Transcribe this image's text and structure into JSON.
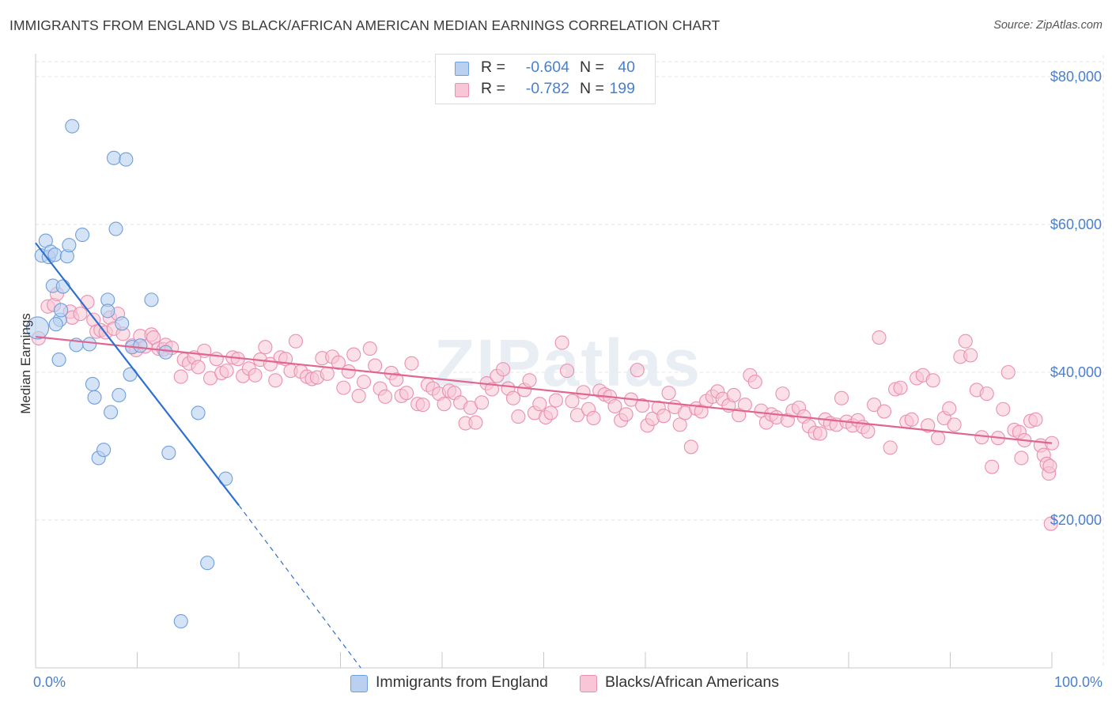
{
  "title": "IMMIGRANTS FROM ENGLAND VS BLACK/AFRICAN AMERICAN MEDIAN EARNINGS CORRELATION CHART",
  "source": "Source: ZipAtlas.com",
  "watermark": "ZIPatlas",
  "colors": {
    "blue_fill": "#b9d0f0",
    "blue_stroke": "#6f9fdc",
    "blue_line": "#2f6fcf",
    "pink_fill": "#f8c6d6",
    "pink_stroke": "#eb8fb0",
    "pink_line": "#e0668f",
    "tick_text": "#4a7fcc",
    "grid": "#e4e4e4"
  },
  "legend": {
    "rows": [
      {
        "r_label": "R =",
        "r_value": "-0.604",
        "n_label": "N =",
        "n_value": "40"
      },
      {
        "r_label": "R =",
        "r_value": "-0.782",
        "n_label": "N =",
        "n_value": "199"
      }
    ]
  },
  "bottom_legend": {
    "series1": "Immigrants from England",
    "series2": "Blacks/African Americans"
  },
  "chart_data": {
    "type": "scatter",
    "title": "IMMIGRANTS FROM ENGLAND VS BLACK/AFRICAN AMERICAN MEDIAN EARNINGS CORRELATION CHART",
    "xlabel": "",
    "ylabel": "Median Earnings",
    "xlim": [
      0,
      100
    ],
    "ylim": [
      0,
      82000
    ],
    "x_tick_labels": [
      "0.0%",
      "100.0%"
    ],
    "y_ticks": [
      20000,
      40000,
      60000,
      80000
    ],
    "y_tick_labels": [
      "$20,000",
      "$40,000",
      "$60,000",
      "$80,000"
    ],
    "grid": true,
    "series": [
      {
        "name": "Immigrants from England",
        "color": "#6f9fdc",
        "trend": {
          "x": [
            0,
            20
          ],
          "y": [
            57500,
            22000
          ],
          "dashed_to": [
            32,
            0
          ]
        },
        "points": [
          [
            0.2,
            46000
          ],
          [
            0.6,
            55800
          ],
          [
            1.0,
            57800
          ],
          [
            1.3,
            55600
          ],
          [
            1.5,
            56300
          ],
          [
            1.7,
            51700
          ],
          [
            1.9,
            55900
          ],
          [
            2.3,
            41700
          ],
          [
            2.4,
            47100
          ],
          [
            2.5,
            48400
          ],
          [
            2.7,
            51600
          ],
          [
            3.1,
            55700
          ],
          [
            3.3,
            57200
          ],
          [
            4.0,
            43700
          ],
          [
            4.6,
            58600
          ],
          [
            5.3,
            43800
          ],
          [
            5.6,
            38400
          ],
          [
            5.8,
            36600
          ],
          [
            6.2,
            28400
          ],
          [
            6.7,
            29500
          ],
          [
            7.1,
            49800
          ],
          [
            7.1,
            48300
          ],
          [
            7.4,
            34600
          ],
          [
            7.7,
            69000
          ],
          [
            7.9,
            59400
          ],
          [
            8.2,
            36900
          ],
          [
            8.5,
            46600
          ],
          [
            8.9,
            68800
          ],
          [
            9.3,
            39700
          ],
          [
            9.5,
            43400
          ],
          [
            10.3,
            43600
          ],
          [
            11.4,
            49800
          ],
          [
            12.8,
            42700
          ],
          [
            13.1,
            29100
          ],
          [
            14.3,
            6300
          ],
          [
            16.0,
            34500
          ],
          [
            16.9,
            14200
          ],
          [
            18.7,
            25600
          ],
          [
            3.6,
            73300
          ],
          [
            2.0,
            46500
          ]
        ]
      },
      {
        "name": "Blacks/African Americans",
        "color": "#eb8fb0",
        "trend": {
          "x": [
            0,
            100
          ],
          "y": [
            44800,
            30400
          ]
        },
        "points": [
          [
            0.3,
            44600
          ],
          [
            1.2,
            48900
          ],
          [
            1.8,
            49100
          ],
          [
            2.1,
            50600
          ],
          [
            3.4,
            48200
          ],
          [
            3.6,
            47400
          ],
          [
            4.4,
            47900
          ],
          [
            5.1,
            49500
          ],
          [
            5.7,
            47100
          ],
          [
            6.0,
            45500
          ],
          [
            6.4,
            45700
          ],
          [
            6.9,
            45400
          ],
          [
            7.3,
            47400
          ],
          [
            7.7,
            45900
          ],
          [
            8.1,
            47900
          ],
          [
            8.6,
            45200
          ],
          [
            9.5,
            43600
          ],
          [
            9.9,
            43000
          ],
          [
            10.3,
            44900
          ],
          [
            10.8,
            43500
          ],
          [
            11.4,
            45100
          ],
          [
            11.6,
            44700
          ],
          [
            12.1,
            43200
          ],
          [
            12.6,
            43100
          ],
          [
            12.8,
            43700
          ],
          [
            13.4,
            43300
          ],
          [
            14.3,
            39400
          ],
          [
            14.6,
            41700
          ],
          [
            15.1,
            41200
          ],
          [
            15.6,
            42000
          ],
          [
            16.0,
            40700
          ],
          [
            16.6,
            42900
          ],
          [
            17.2,
            39200
          ],
          [
            17.8,
            41800
          ],
          [
            18.3,
            39900
          ],
          [
            18.8,
            40200
          ],
          [
            19.4,
            42000
          ],
          [
            19.9,
            41800
          ],
          [
            20.4,
            39500
          ],
          [
            21.0,
            40500
          ],
          [
            21.6,
            39600
          ],
          [
            22.1,
            41700
          ],
          [
            22.6,
            43400
          ],
          [
            23.1,
            41100
          ],
          [
            23.6,
            38900
          ],
          [
            24.1,
            42000
          ],
          [
            24.6,
            41800
          ],
          [
            25.1,
            40200
          ],
          [
            25.6,
            44200
          ],
          [
            26.1,
            40100
          ],
          [
            26.7,
            39400
          ],
          [
            27.2,
            39100
          ],
          [
            27.7,
            39300
          ],
          [
            28.2,
            41900
          ],
          [
            28.7,
            39800
          ],
          [
            29.2,
            42100
          ],
          [
            29.8,
            41300
          ],
          [
            30.3,
            37900
          ],
          [
            30.8,
            40100
          ],
          [
            31.3,
            42400
          ],
          [
            31.8,
            36800
          ],
          [
            32.3,
            38700
          ],
          [
            32.9,
            43200
          ],
          [
            33.4,
            40900
          ],
          [
            33.9,
            37800
          ],
          [
            34.4,
            36700
          ],
          [
            35.0,
            39900
          ],
          [
            35.5,
            39000
          ],
          [
            36.0,
            36800
          ],
          [
            36.5,
            37200
          ],
          [
            37.0,
            41200
          ],
          [
            37.6,
            35700
          ],
          [
            38.1,
            35600
          ],
          [
            38.6,
            38300
          ],
          [
            39.1,
            37800
          ],
          [
            39.7,
            37100
          ],
          [
            40.2,
            35700
          ],
          [
            40.7,
            37500
          ],
          [
            41.2,
            37200
          ],
          [
            41.8,
            35900
          ],
          [
            42.3,
            33100
          ],
          [
            42.8,
            35200
          ],
          [
            43.3,
            33200
          ],
          [
            43.9,
            35900
          ],
          [
            44.4,
            38500
          ],
          [
            44.9,
            37700
          ],
          [
            45.4,
            39500
          ],
          [
            46.0,
            40400
          ],
          [
            46.5,
            37800
          ],
          [
            47.0,
            36500
          ],
          [
            47.5,
            34000
          ],
          [
            48.1,
            37600
          ],
          [
            48.6,
            38900
          ],
          [
            49.1,
            34500
          ],
          [
            49.6,
            35700
          ],
          [
            50.2,
            33900
          ],
          [
            50.7,
            34500
          ],
          [
            51.2,
            36200
          ],
          [
            51.8,
            44000
          ],
          [
            52.3,
            40200
          ],
          [
            52.8,
            36100
          ],
          [
            53.3,
            34200
          ],
          [
            53.9,
            37300
          ],
          [
            54.4,
            35000
          ],
          [
            54.9,
            33800
          ],
          [
            55.5,
            37500
          ],
          [
            56.0,
            37000
          ],
          [
            56.5,
            36700
          ],
          [
            57.0,
            35400
          ],
          [
            57.6,
            33500
          ],
          [
            58.1,
            34300
          ],
          [
            58.6,
            36300
          ],
          [
            59.2,
            40300
          ],
          [
            59.7,
            35500
          ],
          [
            60.2,
            32800
          ],
          [
            60.7,
            33700
          ],
          [
            61.3,
            35200
          ],
          [
            61.8,
            34100
          ],
          [
            62.3,
            37200
          ],
          [
            62.9,
            35300
          ],
          [
            63.4,
            32900
          ],
          [
            63.9,
            34500
          ],
          [
            64.5,
            29900
          ],
          [
            65.0,
            35100
          ],
          [
            65.5,
            34700
          ],
          [
            66.0,
            36100
          ],
          [
            66.6,
            36700
          ],
          [
            67.1,
            37400
          ],
          [
            67.6,
            36400
          ],
          [
            68.2,
            35500
          ],
          [
            68.7,
            36900
          ],
          [
            69.2,
            34200
          ],
          [
            69.8,
            35600
          ],
          [
            70.3,
            39600
          ],
          [
            70.8,
            38700
          ],
          [
            71.4,
            34800
          ],
          [
            71.9,
            33200
          ],
          [
            72.4,
            34300
          ],
          [
            72.9,
            33900
          ],
          [
            73.5,
            37100
          ],
          [
            74.0,
            33500
          ],
          [
            74.5,
            34800
          ],
          [
            75.1,
            35200
          ],
          [
            75.6,
            34000
          ],
          [
            76.1,
            32700
          ],
          [
            76.7,
            31800
          ],
          [
            77.2,
            31700
          ],
          [
            77.7,
            33600
          ],
          [
            78.2,
            33100
          ],
          [
            78.8,
            32900
          ],
          [
            79.3,
            36500
          ],
          [
            79.8,
            33300
          ],
          [
            80.4,
            32800
          ],
          [
            80.9,
            33500
          ],
          [
            81.4,
            32600
          ],
          [
            81.9,
            32000
          ],
          [
            82.5,
            35600
          ],
          [
            83.0,
            44700
          ],
          [
            83.5,
            34700
          ],
          [
            84.1,
            29800
          ],
          [
            84.6,
            37700
          ],
          [
            85.1,
            37900
          ],
          [
            85.7,
            33300
          ],
          [
            86.2,
            33600
          ],
          [
            86.7,
            39200
          ],
          [
            87.3,
            39600
          ],
          [
            87.8,
            32800
          ],
          [
            88.3,
            38900
          ],
          [
            88.8,
            31100
          ],
          [
            89.4,
            33800
          ],
          [
            89.9,
            35100
          ],
          [
            90.4,
            32900
          ],
          [
            91.0,
            42100
          ],
          [
            91.5,
            44200
          ],
          [
            92.0,
            42300
          ],
          [
            92.6,
            37600
          ],
          [
            93.1,
            31200
          ],
          [
            93.6,
            37100
          ],
          [
            94.1,
            27200
          ],
          [
            94.7,
            31100
          ],
          [
            95.2,
            35000
          ],
          [
            95.7,
            40000
          ],
          [
            96.3,
            32200
          ],
          [
            96.8,
            31900
          ],
          [
            97.3,
            30800
          ],
          [
            97.9,
            33400
          ],
          [
            98.4,
            33600
          ],
          [
            98.9,
            30100
          ],
          [
            99.2,
            28800
          ],
          [
            99.5,
            27600
          ],
          [
            99.7,
            26300
          ],
          [
            99.8,
            27300
          ],
          [
            99.9,
            19500
          ],
          [
            100.0,
            30400
          ],
          [
            97.0,
            28400
          ]
        ]
      }
    ]
  }
}
